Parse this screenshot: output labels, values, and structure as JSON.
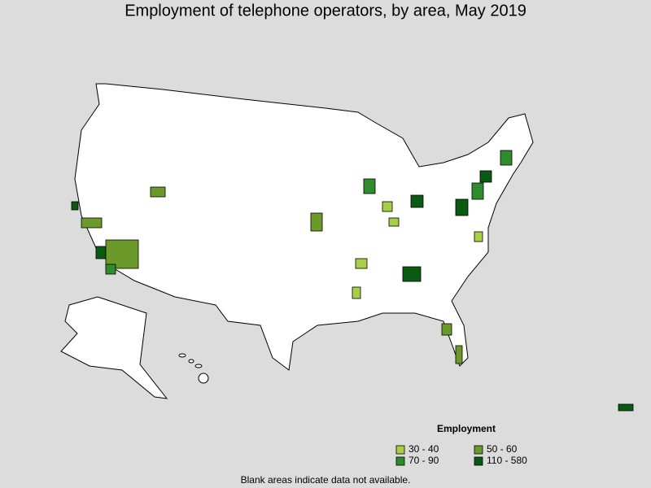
{
  "title": "Employment of telephone operators, by area, May 2019",
  "legend": {
    "title": "Employment",
    "items": [
      {
        "label": "30 - 40",
        "color": "#a8cf45"
      },
      {
        "label": "50 - 60",
        "color": "#6b9a2b"
      },
      {
        "label": "70 - 90",
        "color": "#2e8b2e"
      },
      {
        "label": "110 - 580",
        "color": "#0b5a12"
      }
    ]
  },
  "footnote": "Blank areas indicate data not available."
}
